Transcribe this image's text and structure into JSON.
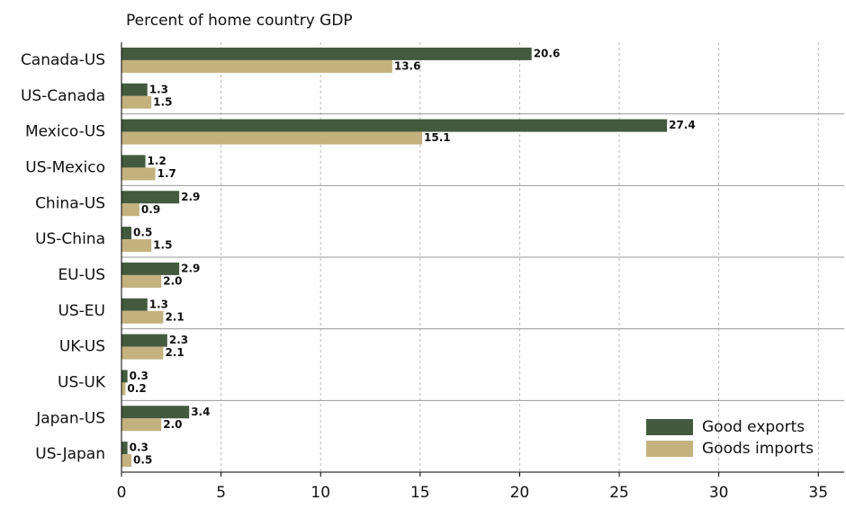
{
  "chart_data": {
    "type": "bar",
    "orientation": "horizontal",
    "title": "Percent of home country GDP",
    "categories": [
      "Canada-US",
      "US-Canada",
      "Mexico-US",
      "US-Mexico",
      "China-US",
      "US-China",
      "EU-US",
      "US-EU",
      "UK-US",
      "US-UK",
      "Japan-US",
      "US-Japan"
    ],
    "series": [
      {
        "name": "Good exports",
        "color": "#435a3f",
        "values": [
          20.6,
          1.3,
          27.4,
          1.2,
          2.9,
          0.5,
          2.9,
          1.3,
          2.3,
          0.3,
          3.4,
          0.3
        ],
        "value_labels": [
          "20.6",
          "1.3",
          "27.4",
          "1.2",
          "2.9",
          "0.5",
          "2.9",
          "1.3",
          "2.3",
          "0.3",
          "3.4",
          "0.3"
        ]
      },
      {
        "name": "Goods imports",
        "color": "#c4b27e",
        "values": [
          13.6,
          1.5,
          15.1,
          1.7,
          0.9,
          1.5,
          2.0,
          2.1,
          2.1,
          0.2,
          2.0,
          0.5
        ],
        "value_labels": [
          "13.6",
          "1.5",
          "15.1",
          "1.7",
          "0.9",
          "1.5",
          "2.0",
          "2.1",
          "2.1",
          "0.2",
          "2.0",
          "0.5"
        ]
      }
    ],
    "xlim": [
      0,
      36.3
    ],
    "xticks": [
      0,
      5,
      10,
      15,
      20,
      25,
      30,
      35
    ],
    "grid": true,
    "legend": "lower right"
  }
}
